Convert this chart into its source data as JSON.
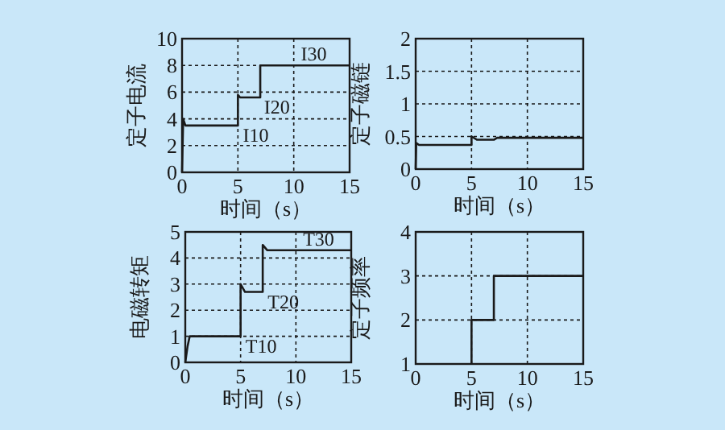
{
  "chart_data": [
    {
      "type": "line",
      "ylabel": "定子电流",
      "xlabel": "时间（s）",
      "xlim": [
        0,
        15
      ],
      "ylim": [
        0,
        10
      ],
      "xticks": [
        0,
        5,
        10,
        15
      ],
      "yticks": [
        0,
        2,
        4,
        6,
        8,
        10
      ],
      "grid": true,
      "line_style": "solid",
      "series": [
        {
          "color": "#1a1a1a",
          "x": [
            0,
            0.1,
            0.3,
            5,
            5,
            5.2,
            7,
            7,
            15
          ],
          "values": [
            0,
            4.0,
            3.5,
            3.5,
            5.8,
            5.6,
            5.6,
            8,
            8
          ]
        }
      ],
      "annotations": [
        {
          "text": "I10",
          "x": 5.3,
          "y": 3.5
        },
        {
          "text": "I20",
          "x": 7.2,
          "y": 5.6
        },
        {
          "text": "I30",
          "x": 10.5,
          "y": 8
        }
      ]
    },
    {
      "type": "line",
      "ylabel": "定子磁链",
      "xlabel": "时间（s）",
      "xlim": [
        0,
        15
      ],
      "ylim": [
        0,
        2
      ],
      "xticks": [
        0,
        5,
        10,
        15
      ],
      "yticks": [
        0,
        0.5,
        1,
        1.5,
        2
      ],
      "grid": true,
      "line_style": "solid",
      "series": [
        {
          "color": "#1a1a1a",
          "x": [
            0,
            0.05,
            0.3,
            5,
            5,
            5.5,
            7,
            7.3,
            15
          ],
          "values": [
            0,
            0.4,
            0.37,
            0.37,
            0.5,
            0.45,
            0.45,
            0.48,
            0.48
          ]
        }
      ]
    },
    {
      "type": "line",
      "ylabel": "电磁转矩",
      "xlabel": "时间（s）",
      "xlim": [
        0,
        15
      ],
      "ylim": [
        0,
        5
      ],
      "xticks": [
        0,
        5,
        10,
        15
      ],
      "yticks": [
        0,
        1,
        2,
        3,
        4,
        5
      ],
      "grid": true,
      "line_style": "solid",
      "series": [
        {
          "color": "#1a1a1a",
          "x": [
            0,
            0.2,
            0.4,
            5,
            5,
            5.4,
            7,
            7,
            7.4,
            15
          ],
          "values": [
            0,
            0.6,
            1,
            1,
            3,
            2.7,
            2.7,
            4.5,
            4.3,
            4.3
          ]
        }
      ],
      "annotations": [
        {
          "text": "T10",
          "x": 5.3,
          "y": 1
        },
        {
          "text": "T20",
          "x": 7.3,
          "y": 2.7
        },
        {
          "text": "T30",
          "x": 10.5,
          "y": 4.3
        }
      ]
    },
    {
      "type": "line",
      "ylabel": "定子频率",
      "xlabel": "时间（s）",
      "xlim": [
        0,
        15
      ],
      "ylim": [
        1,
        4
      ],
      "xticks": [
        0,
        5,
        10,
        15
      ],
      "yticks": [
        1,
        2,
        3,
        4
      ],
      "grid": true,
      "line_style": "solid",
      "series": [
        {
          "color": "#1a1a1a",
          "x": [
            5,
            5,
            7,
            7,
            15
          ],
          "values": [
            1,
            2,
            2,
            3,
            3
          ]
        }
      ]
    }
  ]
}
